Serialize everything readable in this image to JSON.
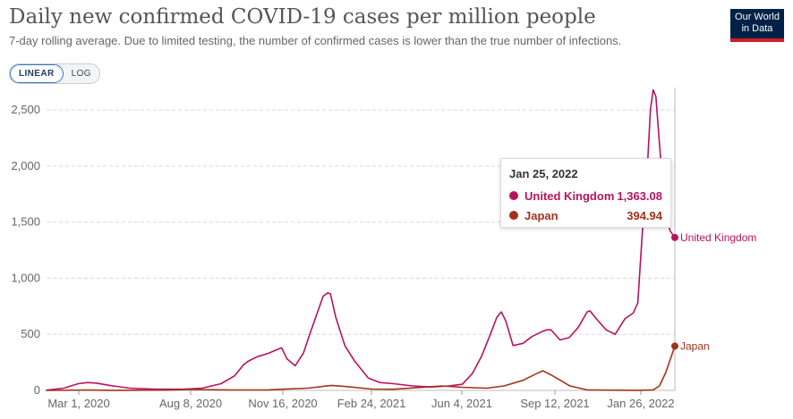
{
  "header": {
    "title": "Daily new confirmed COVID-19 cases per million people",
    "subtitle": "7-day rolling average. Due to limited testing, the number of confirmed cases is lower than the true number of infections."
  },
  "logo": {
    "line1": "Our World",
    "line2": "in Data"
  },
  "scale_toggle": {
    "linear_label": "LINEAR",
    "log_label": "LOG",
    "selected": "LINEAR"
  },
  "tooltip": {
    "date": "Jan 25, 2022",
    "rows": [
      {
        "name": "United Kingdom",
        "value": "1,363.08"
      },
      {
        "name": "Japan",
        "value": "394.94"
      }
    ]
  },
  "colors": {
    "united_kingdom": "#b8125e",
    "japan": "#a2321c",
    "grid": "#d9d9d9",
    "axis_text": "#666666"
  },
  "chart_data": {
    "type": "line",
    "title": "Daily new confirmed COVID-19 cases per million people",
    "subtitle": "7-day rolling average. Due to limited testing, the number of confirmed cases is lower than the true number of infections.",
    "xlabel": "",
    "ylabel": "",
    "x_range": [
      "2020-03-01",
      "2022-01-25"
    ],
    "ylim": [
      0,
      2700
    ],
    "y_ticks": [
      0,
      500,
      1000,
      1500,
      2000,
      2500
    ],
    "y_tick_labels": [
      "0",
      "500",
      "1,000",
      "1,500",
      "2,000",
      "2,500"
    ],
    "x_ticks": [
      "2020-03-01",
      "2020-08-08",
      "2020-11-16",
      "2021-02-24",
      "2021-06-04",
      "2021-09-12",
      "2022-01-26"
    ],
    "x_tick_labels": [
      "Mar 1, 2020",
      "Aug 8, 2020",
      "Nov 16, 2020",
      "Feb 24, 2021",
      "Jun 4, 2021",
      "Sep 12, 2021",
      "Jan 26, 2022"
    ],
    "grid": true,
    "end_labels": true,
    "series": [
      {
        "name": "United Kingdom",
        "x": [
          "2020-03-01",
          "2020-03-20",
          "2020-04-05",
          "2020-04-15",
          "2020-04-25",
          "2020-05-10",
          "2020-06-01",
          "2020-07-01",
          "2020-08-01",
          "2020-08-20",
          "2020-09-10",
          "2020-09-25",
          "2020-10-05",
          "2020-10-10",
          "2020-10-20",
          "2020-11-01",
          "2020-11-10",
          "2020-11-16",
          "2020-11-22",
          "2020-12-01",
          "2020-12-10",
          "2020-12-18",
          "2020-12-25",
          "2021-01-01",
          "2021-01-06",
          "2021-01-09",
          "2021-01-15",
          "2021-01-25",
          "2021-02-05",
          "2021-02-20",
          "2021-03-05",
          "2021-03-20",
          "2021-04-10",
          "2021-05-01",
          "2021-05-20",
          "2021-06-04",
          "2021-06-15",
          "2021-06-25",
          "2021-07-05",
          "2021-07-12",
          "2021-07-17",
          "2021-07-22",
          "2021-07-30",
          "2021-08-10",
          "2021-08-20",
          "2021-08-30",
          "2021-09-05",
          "2021-09-10",
          "2021-09-20",
          "2021-09-30",
          "2021-10-10",
          "2021-10-20",
          "2021-10-23",
          "2021-10-30",
          "2021-11-10",
          "2021-11-20",
          "2021-12-01",
          "2021-12-10",
          "2021-12-15",
          "2021-12-20",
          "2021-12-25",
          "2021-12-29",
          "2022-01-01",
          "2022-01-04",
          "2022-01-08",
          "2022-01-12",
          "2022-01-16",
          "2022-01-20",
          "2022-01-25"
        ],
        "values": [
          2,
          20,
          60,
          70,
          65,
          45,
          20,
          10,
          12,
          20,
          60,
          130,
          230,
          260,
          300,
          330,
          360,
          380,
          280,
          220,
          330,
          520,
          680,
          840,
          870,
          860,
          650,
          400,
          260,
          110,
          70,
          60,
          40,
          30,
          40,
          55,
          150,
          300,
          500,
          650,
          700,
          620,
          400,
          420,
          480,
          520,
          540,
          540,
          450,
          470,
          560,
          700,
          710,
          640,
          540,
          500,
          640,
          690,
          780,
          1400,
          1900,
          2500,
          2680,
          2620,
          2200,
          1800,
          1520,
          1420,
          1363.08
        ]
      },
      {
        "name": "Japan",
        "x": [
          "2020-03-01",
          "2020-04-15",
          "2020-05-15",
          "2020-07-15",
          "2020-08-08",
          "2020-09-20",
          "2020-11-01",
          "2020-11-16",
          "2020-12-15",
          "2021-01-10",
          "2021-01-25",
          "2021-02-24",
          "2021-03-20",
          "2021-04-15",
          "2021-05-12",
          "2021-06-04",
          "2021-07-01",
          "2021-07-20",
          "2021-08-10",
          "2021-08-25",
          "2021-09-01",
          "2021-09-12",
          "2021-10-01",
          "2021-10-20",
          "2021-11-15",
          "2021-12-15",
          "2022-01-01",
          "2022-01-08",
          "2022-01-15",
          "2022-01-25"
        ],
        "values": [
          0,
          3,
          1,
          3,
          8,
          4,
          5,
          10,
          20,
          45,
          35,
          12,
          10,
          25,
          40,
          28,
          20,
          40,
          90,
          150,
          175,
          130,
          40,
          5,
          2,
          1,
          5,
          40,
          160,
          394.94
        ]
      }
    ]
  }
}
